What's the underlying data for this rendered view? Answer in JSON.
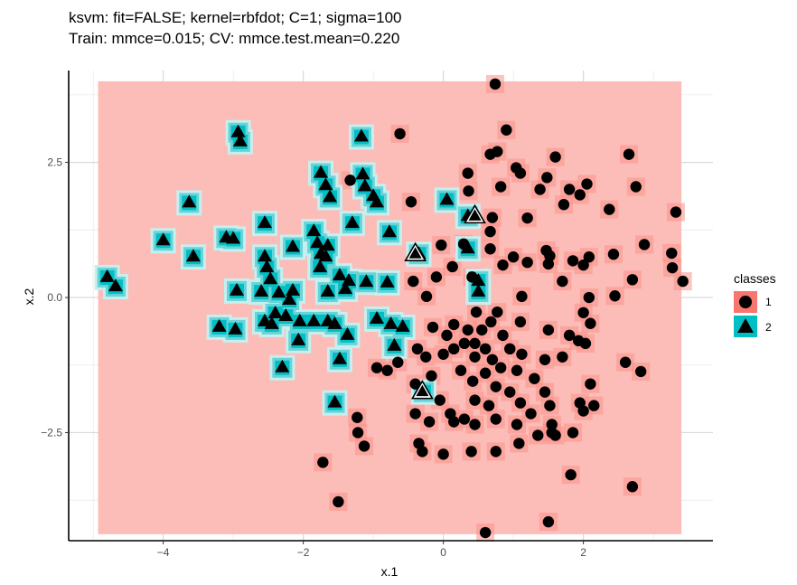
{
  "chart_data": {
    "type": "scatter",
    "title": "ksvm: fit=FALSE; kernel=rbfdot; C=1; sigma=100",
    "subtitle": "Train: mmce=0.015; CV: mmce.test.mean=0.220",
    "xlabel": "x.1",
    "ylabel": "x.2",
    "xlim": [
      -5.35,
      3.85
    ],
    "ylim": [
      -4.5,
      4.2
    ],
    "xticks": [
      -4,
      -2,
      0,
      2
    ],
    "xtick_labels": [
      "−4",
      "−2",
      "0",
      "2"
    ],
    "yticks": [
      -2.5,
      0,
      2.5
    ],
    "ytick_labels": [
      "−2.5",
      "0.0",
      "2.5"
    ],
    "grid": true,
    "background_region": {
      "xmin": -4.93,
      "xmax": 3.4,
      "ymin": -4.38,
      "ymax": 4.0,
      "class": "1"
    },
    "legend": {
      "title": "classes",
      "placement": "right",
      "entries": [
        {
          "label": "1",
          "shape": "circle",
          "color": "#F8766D"
        },
        {
          "label": "2",
          "shape": "triangle",
          "color": "#00BFC4"
        }
      ]
    },
    "colors": {
      "class1": "#F8766D",
      "class1_region": "#fcbcb7",
      "class2": "#00BFC4"
    },
    "series": [
      {
        "name": "1",
        "shape": "circle",
        "points": [
          [
            0.74,
            3.95
          ],
          [
            -0.62,
            3.03
          ],
          [
            0.9,
            3.1
          ],
          [
            0.67,
            2.65
          ],
          [
            0.77,
            2.7
          ],
          [
            1.04,
            2.4
          ],
          [
            1.1,
            2.3
          ],
          [
            1.48,
            2.22
          ],
          [
            1.6,
            2.6
          ],
          [
            2.65,
            2.65
          ],
          [
            0.35,
            2.3
          ],
          [
            0.36,
            1.97
          ],
          [
            0.82,
            2.05
          ],
          [
            1.38,
            2.0
          ],
          [
            1.8,
            2.0
          ],
          [
            1.95,
            1.9
          ],
          [
            2.05,
            2.1
          ],
          [
            2.75,
            2.05
          ],
          [
            -1.33,
            2.17
          ],
          [
            -0.46,
            1.77
          ],
          [
            1.72,
            1.72
          ],
          [
            2.37,
            1.63
          ],
          [
            3.32,
            1.58
          ],
          [
            0.7,
            1.48
          ],
          [
            1.2,
            1.47
          ],
          [
            0.67,
            1.22
          ],
          [
            0.67,
            0.9
          ],
          [
            0.29,
            0.99
          ],
          [
            -0.03,
            0.97
          ],
          [
            1.47,
            0.87
          ],
          [
            1.52,
            0.77
          ],
          [
            1.0,
            0.75
          ],
          [
            1.2,
            0.65
          ],
          [
            1.5,
            0.62
          ],
          [
            1.85,
            0.68
          ],
          [
            2.08,
            0.75
          ],
          [
            2.43,
            0.8
          ],
          [
            2.87,
            0.98
          ],
          [
            3.26,
            0.82
          ],
          [
            3.27,
            0.55
          ],
          [
            3.42,
            0.3
          ],
          [
            2.0,
            0.6
          ],
          [
            0.13,
            0.57
          ],
          [
            0.85,
            0.6
          ],
          [
            0.41,
            0.38
          ],
          [
            -0.1,
            0.38
          ],
          [
            -0.43,
            0.3
          ],
          [
            2.7,
            0.33
          ],
          [
            1.7,
            0.3
          ],
          [
            2.45,
            0.03
          ],
          [
            1.12,
            0.02
          ],
          [
            2.08,
            0.0
          ],
          [
            -0.24,
            0.02
          ],
          [
            0.47,
            -0.27
          ],
          [
            0.77,
            -0.27
          ],
          [
            1.1,
            -0.45
          ],
          [
            2.0,
            -0.28
          ],
          [
            2.1,
            -0.48
          ],
          [
            0.68,
            -0.45
          ],
          [
            0.15,
            -0.5
          ],
          [
            -0.15,
            -0.55
          ],
          [
            0.05,
            -0.7
          ],
          [
            0.35,
            -0.6
          ],
          [
            0.55,
            -0.6
          ],
          [
            0.85,
            -0.7
          ],
          [
            1.5,
            -0.6
          ],
          [
            1.8,
            -0.7
          ],
          [
            1.93,
            -0.8
          ],
          [
            2.03,
            -0.85
          ],
          [
            0.3,
            -0.85
          ],
          [
            0.45,
            -0.85
          ],
          [
            0.15,
            -0.95
          ],
          [
            0.6,
            -0.95
          ],
          [
            0.95,
            -0.95
          ],
          [
            -0.37,
            -0.95
          ],
          [
            -0.25,
            -1.1
          ],
          [
            0.0,
            -1.05
          ],
          [
            0.45,
            -1.1
          ],
          [
            0.7,
            -1.15
          ],
          [
            1.12,
            -1.05
          ],
          [
            1.45,
            -1.15
          ],
          [
            1.7,
            -1.1
          ],
          [
            2.6,
            -1.2
          ],
          [
            -0.65,
            -1.2
          ],
          [
            -0.95,
            -1.3
          ],
          [
            -0.8,
            -1.35
          ],
          [
            0.25,
            -1.35
          ],
          [
            0.6,
            -1.4
          ],
          [
            0.82,
            -1.3
          ],
          [
            1.05,
            -1.35
          ],
          [
            1.3,
            -1.5
          ],
          [
            2.1,
            -1.6
          ],
          [
            -0.17,
            -1.45
          ],
          [
            0.42,
            -1.55
          ],
          [
            -0.4,
            -1.6
          ],
          [
            0.75,
            -1.65
          ],
          [
            0.95,
            -1.75
          ],
          [
            1.45,
            -1.75
          ],
          [
            1.95,
            -1.95
          ],
          [
            2.15,
            -2.0
          ],
          [
            0.45,
            -1.9
          ],
          [
            -0.05,
            -1.9
          ],
          [
            0.65,
            -2.0
          ],
          [
            1.1,
            -1.95
          ],
          [
            1.52,
            -2.0
          ],
          [
            2.0,
            -2.1
          ],
          [
            2.82,
            -1.37
          ],
          [
            0.1,
            -2.15
          ],
          [
            0.3,
            -2.25
          ],
          [
            0.75,
            -2.25
          ],
          [
            1.25,
            -2.15
          ],
          [
            -0.4,
            -2.15
          ],
          [
            -0.2,
            -2.3
          ],
          [
            0.15,
            -2.3
          ],
          [
            0.45,
            -2.35
          ],
          [
            1.05,
            -2.35
          ],
          [
            1.55,
            -2.35
          ],
          [
            1.55,
            -2.5
          ],
          [
            1.6,
            -2.55
          ],
          [
            -0.35,
            -2.7
          ],
          [
            -0.3,
            -2.85
          ],
          [
            0.0,
            -2.9
          ],
          [
            0.4,
            -2.85
          ],
          [
            0.75,
            -2.85
          ],
          [
            1.08,
            -2.7
          ],
          [
            1.35,
            -2.55
          ],
          [
            1.85,
            -2.5
          ],
          [
            -1.23,
            -2.22
          ],
          [
            -1.22,
            -2.5
          ],
          [
            -1.13,
            -2.75
          ],
          [
            -1.72,
            -3.05
          ],
          [
            1.82,
            -3.28
          ],
          [
            2.7,
            -3.5
          ],
          [
            -1.5,
            -3.78
          ],
          [
            1.5,
            -4.15
          ],
          [
            0.6,
            -4.35
          ]
        ]
      },
      {
        "name": "2",
        "shape": "triangle",
        "points": [
          [
            -2.93,
            3.05
          ],
          [
            -2.9,
            2.88
          ],
          [
            -1.17,
            2.97
          ],
          [
            -1.75,
            2.3
          ],
          [
            -1.15,
            2.27
          ],
          [
            -1.68,
            2.07
          ],
          [
            -1.62,
            1.85
          ],
          [
            -1.12,
            2.05
          ],
          [
            -1.0,
            1.87
          ],
          [
            -3.63,
            1.75
          ],
          [
            -0.95,
            1.75
          ],
          [
            0.05,
            1.8
          ],
          [
            -2.55,
            1.37
          ],
          [
            -1.3,
            1.37
          ],
          [
            -1.85,
            1.22
          ],
          [
            -0.77,
            1.2
          ],
          [
            -3.1,
            1.1
          ],
          [
            -3.0,
            1.08
          ],
          [
            -4.0,
            1.05
          ],
          [
            -1.8,
            1.0
          ],
          [
            -2.15,
            0.93
          ],
          [
            -1.65,
            0.95
          ],
          [
            0.35,
            0.9
          ],
          [
            -3.57,
            0.75
          ],
          [
            -2.55,
            0.75
          ],
          [
            -1.75,
            0.8
          ],
          [
            -1.68,
            0.75
          ],
          [
            -1.76,
            0.55
          ],
          [
            -2.52,
            0.55
          ],
          [
            -1.48,
            0.4
          ],
          [
            -2.47,
            0.33
          ],
          [
            -4.8,
            0.37
          ],
          [
            -1.35,
            0.3
          ],
          [
            -1.1,
            0.28
          ],
          [
            -0.8,
            0.27
          ],
          [
            -4.68,
            0.2
          ],
          [
            0.5,
            0.3
          ],
          [
            -2.95,
            0.12
          ],
          [
            -2.6,
            0.1
          ],
          [
            -2.35,
            0.08
          ],
          [
            -2.15,
            0.12
          ],
          [
            -2.2,
            -0.05
          ],
          [
            -1.65,
            0.1
          ],
          [
            -1.4,
            0.15
          ],
          [
            -2.4,
            -0.3
          ],
          [
            -2.25,
            -0.35
          ],
          [
            -2.55,
            -0.45
          ],
          [
            -2.45,
            -0.5
          ],
          [
            -2.05,
            -0.45
          ],
          [
            -1.85,
            -0.45
          ],
          [
            -1.65,
            -0.45
          ],
          [
            -1.55,
            -0.5
          ],
          [
            -0.95,
            -0.4
          ],
          [
            -0.75,
            -0.5
          ],
          [
            -0.58,
            -0.55
          ],
          [
            -3.2,
            -0.55
          ],
          [
            -2.97,
            -0.6
          ],
          [
            -1.37,
            -0.7
          ],
          [
            -2.07,
            -0.8
          ],
          [
            -0.7,
            -0.9
          ],
          [
            -1.48,
            -1.15
          ],
          [
            -2.3,
            -1.3
          ],
          [
            -1.55,
            -1.95
          ],
          [
            0.5,
            0.1
          ],
          [
            0.35,
            1.5
          ],
          [
            -0.35,
            0.8
          ],
          [
            -0.28,
            -1.75
          ]
        ]
      }
    ],
    "misclassified_training_points": [
      [
        0.45,
        1.5
      ],
      [
        -0.4,
        0.8
      ],
      [
        -0.3,
        -1.75
      ]
    ]
  }
}
